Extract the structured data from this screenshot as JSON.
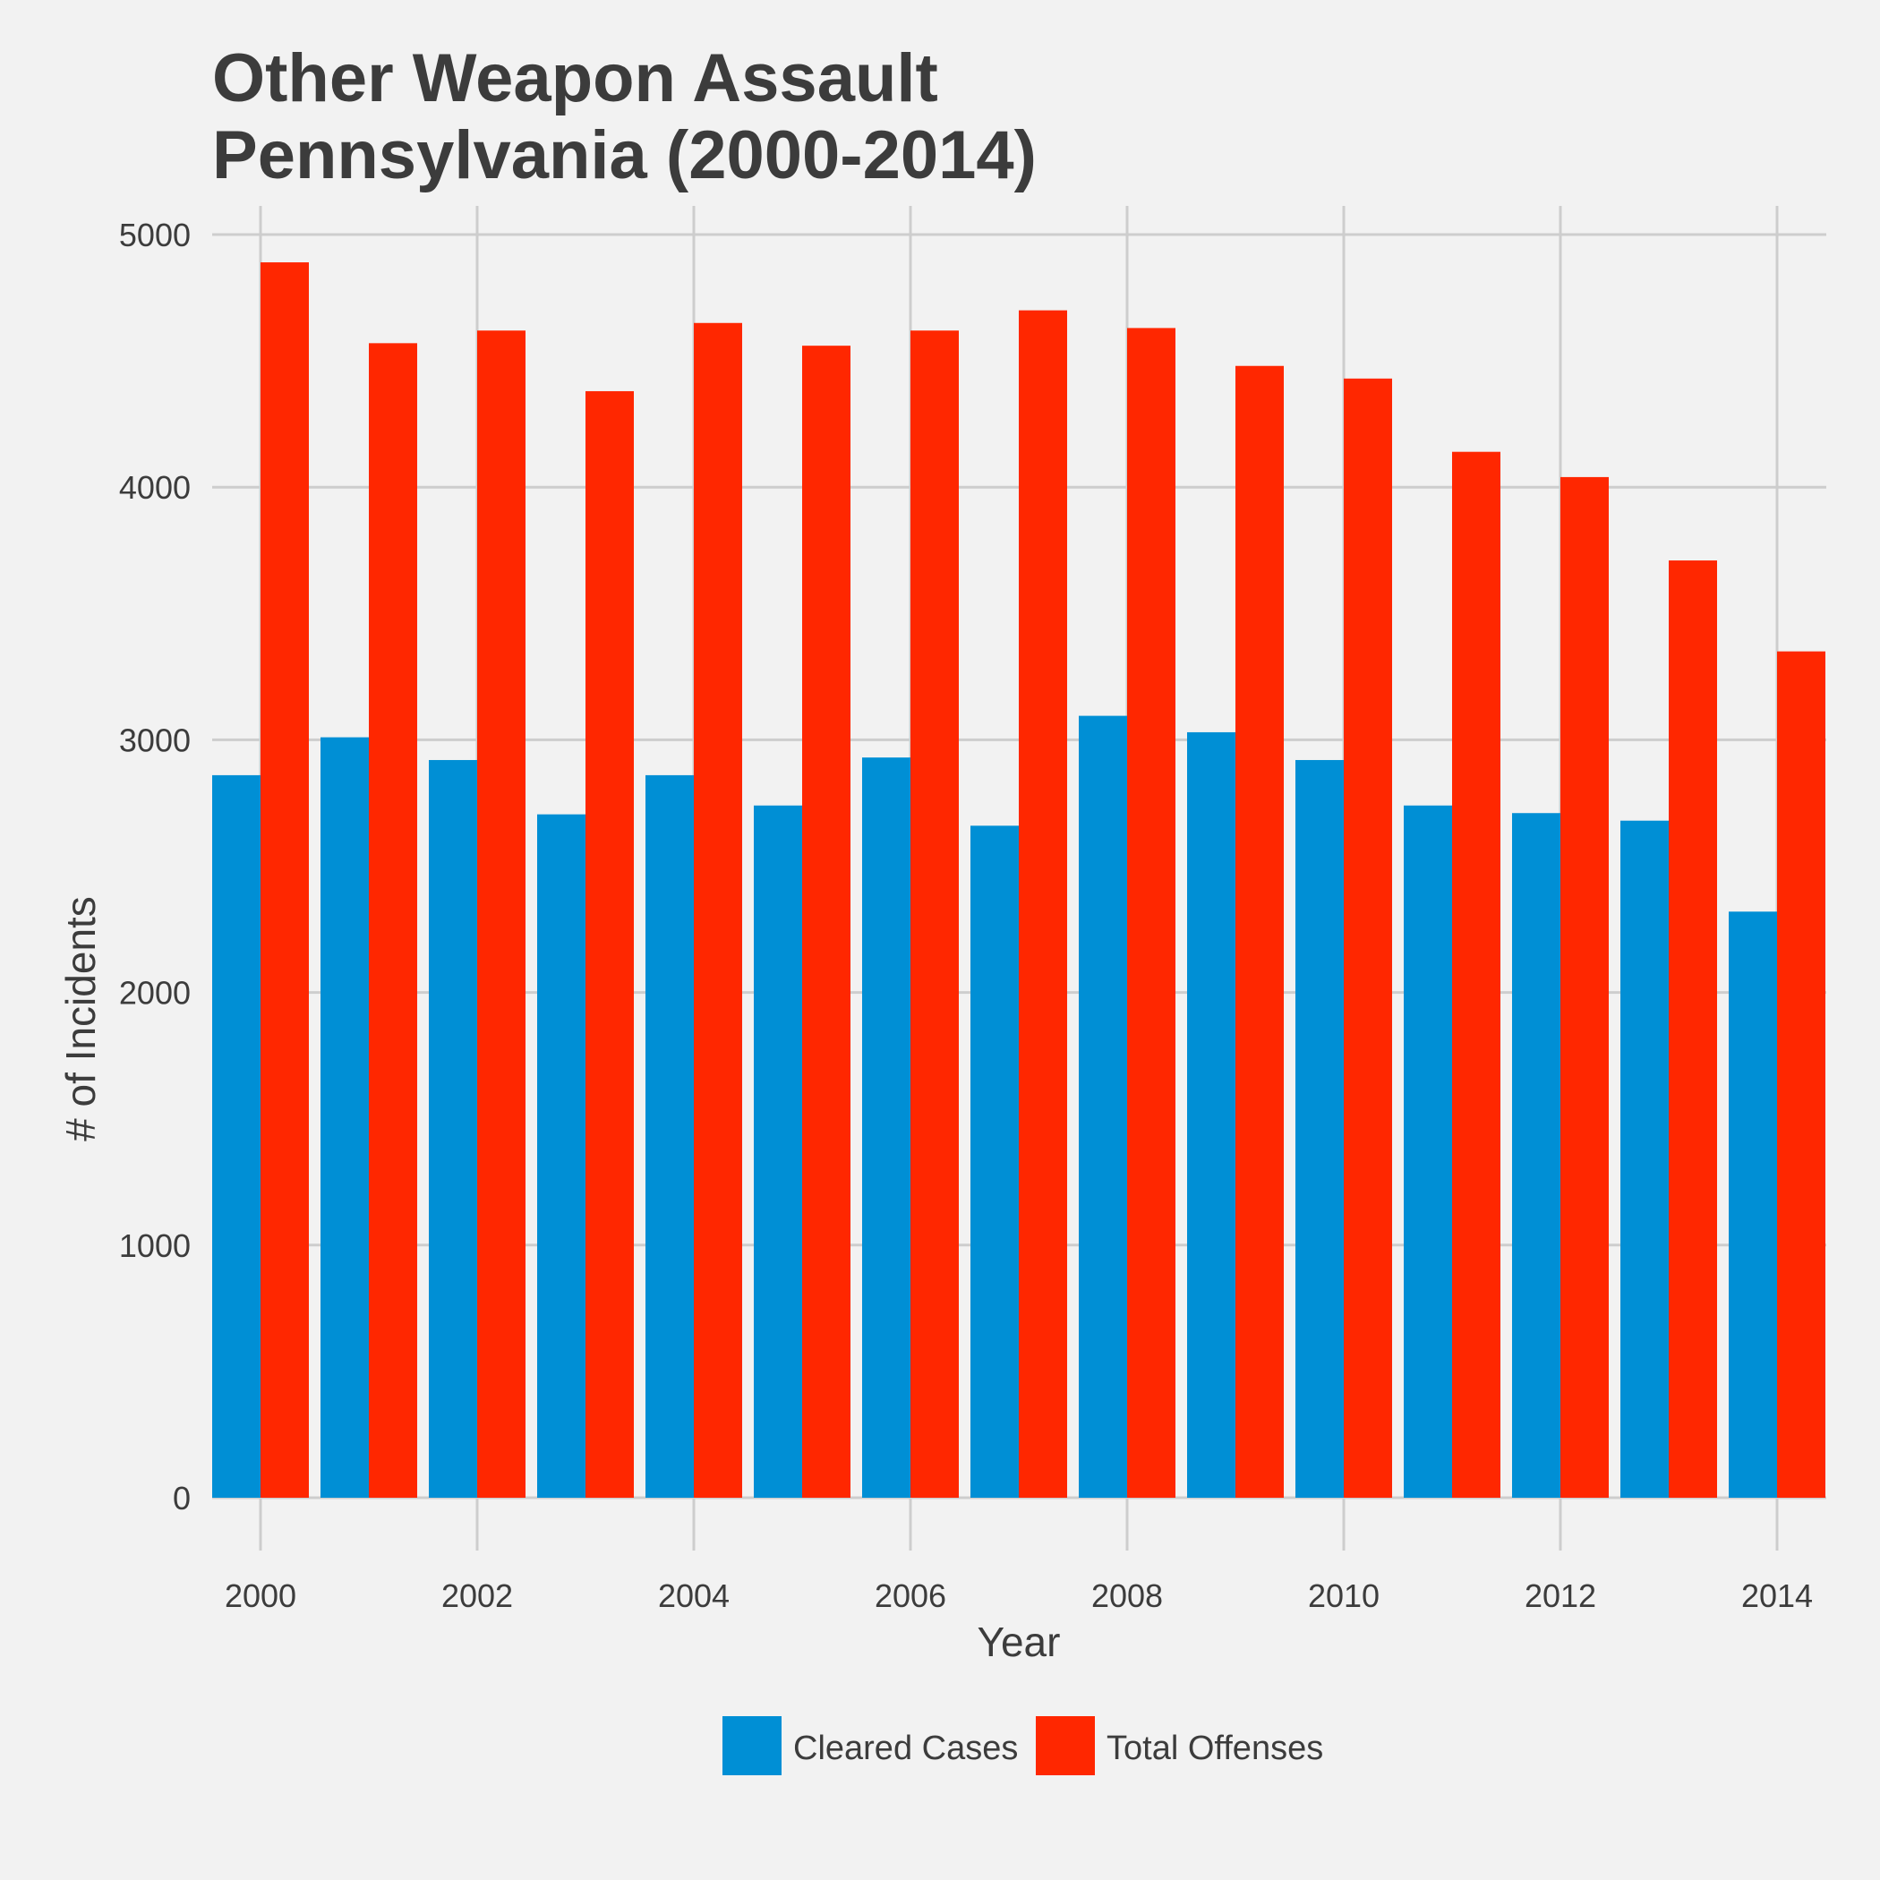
{
  "chart_data": {
    "type": "bar",
    "title_lines": [
      "Other Weapon Assault",
      "Pennsylvania (2000-2014)"
    ],
    "xlabel": "Year",
    "ylabel": "# of Incidents",
    "categories": [
      2000,
      2001,
      2002,
      2003,
      2004,
      2005,
      2006,
      2007,
      2008,
      2009,
      2010,
      2011,
      2012,
      2013,
      2014
    ],
    "x_tick_labels": [
      "2000",
      "2002",
      "2004",
      "2006",
      "2008",
      "2010",
      "2012",
      "2014"
    ],
    "y_tick_labels": [
      "0",
      "1000",
      "2000",
      "3000",
      "4000",
      "5000"
    ],
    "ylim": [
      0,
      5000
    ],
    "grid": true,
    "legend_position": "bottom",
    "series": [
      {
        "name": "Cleared Cases",
        "color": "#008fd5",
        "values": [
          2860,
          3010,
          2920,
          2705,
          2860,
          2740,
          2930,
          2660,
          3095,
          3030,
          2920,
          2740,
          2710,
          2680,
          2320
        ]
      },
      {
        "name": "Total Offenses",
        "color": "#ff2700",
        "values": [
          4890,
          4570,
          4620,
          4380,
          4650,
          4560,
          4620,
          4700,
          4630,
          4480,
          4430,
          4140,
          4040,
          3710,
          3350
        ]
      }
    ]
  }
}
